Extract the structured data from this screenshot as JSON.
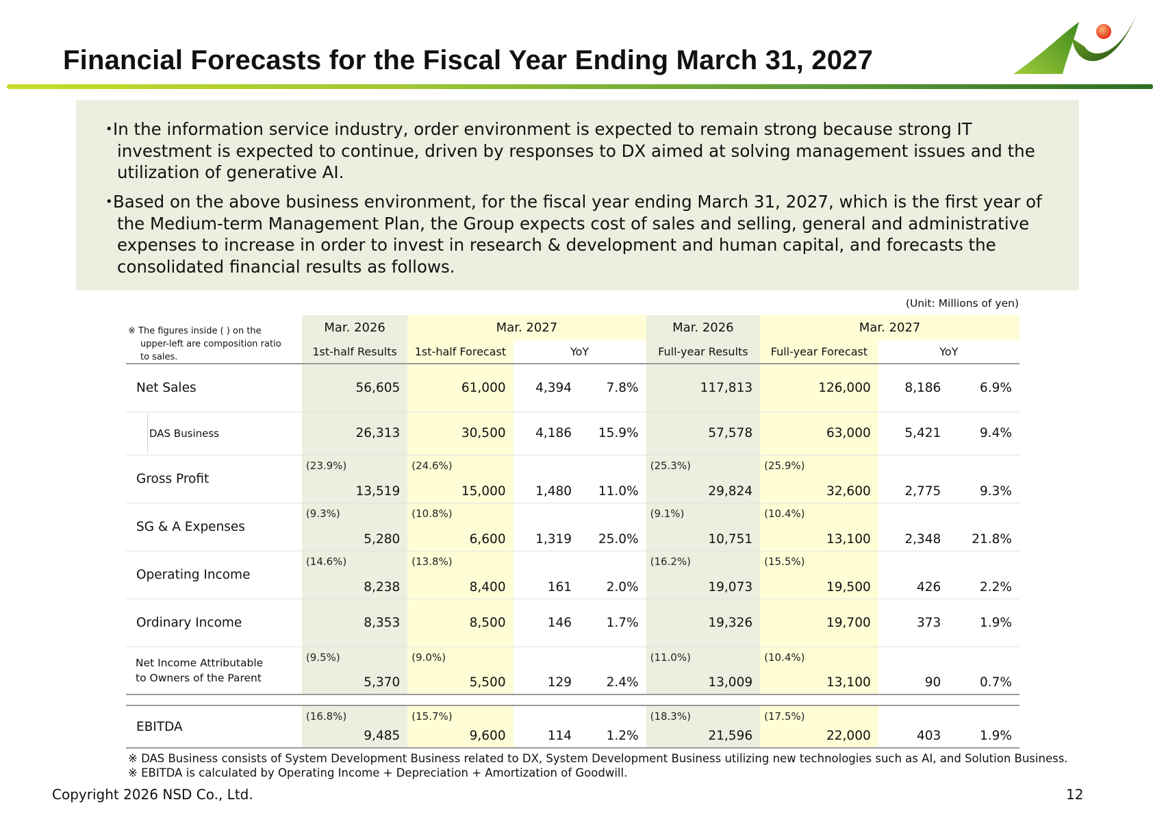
{
  "title": "Financial Forecasts for the Fiscal Year Ending March 31, 2027",
  "summary": {
    "bullet_symbol": "・",
    "bullets": [
      "In the information service industry, order environment is expected to remain strong because strong IT investment is expected to continue, driven by responses to DX aimed at solving management issues and the utilization of generative AI.",
      "Based on the above business environment, for the fiscal year ending March 31, 2027, which is the first year of the Medium-term Management Plan, the Group expects cost of sales and selling, general and administrative expenses to increase in order to invest in research & development and human capital, and forecasts the consolidated financial results as follows."
    ]
  },
  "table": {
    "unit": "(Unit: Millions of yen)",
    "note": "※ The figures inside (  ) on the upper-left are composition ratio to sales.",
    "header_periods": [
      "Mar. 2026",
      "Mar. 2027",
      "Mar. 2026",
      "Mar. 2027"
    ],
    "header_columns": [
      "1st-half Results",
      "1st-half Forecast",
      "YoY",
      "Full-year Results",
      "Full-year Forecast",
      "YoY"
    ],
    "rows": [
      {
        "label": "Net Sales",
        "h1r": "56,605",
        "h1f": "61,000",
        "h1yoy": "4,394",
        "h1pct": "7.8%",
        "fyr": "117,813",
        "fyf": "126,000",
        "fyyoy": "8,186",
        "fypct": "6.9%"
      },
      {
        "label": "DAS Business",
        "h1r": "26,313",
        "h1f": "30,500",
        "h1yoy": "4,186",
        "h1pct": "15.9%",
        "fyr": "57,578",
        "fyf": "63,000",
        "fyyoy": "5,421",
        "fypct": "9.4%"
      },
      {
        "label": "Gross Profit",
        "h1r_ratio": "(23.9%)",
        "h1r": "13,519",
        "h1f_ratio": "(24.6%)",
        "h1f": "15,000",
        "h1yoy": "1,480",
        "h1pct": "11.0%",
        "fyr_ratio": "(25.3%)",
        "fyr": "29,824",
        "fyf_ratio": "(25.9%)",
        "fyf": "32,600",
        "fyyoy": "2,775",
        "fypct": "9.3%"
      },
      {
        "label": "SG & A Expenses",
        "h1r_ratio": "(9.3%)",
        "h1r": "5,280",
        "h1f_ratio": "(10.8%)",
        "h1f": "6,600",
        "h1yoy": "1,319",
        "h1pct": "25.0%",
        "fyr_ratio": "(9.1%)",
        "fyr": "10,751",
        "fyf_ratio": "(10.4%)",
        "fyf": "13,100",
        "fyyoy": "2,348",
        "fypct": "21.8%"
      },
      {
        "label": "Operating Income",
        "h1r_ratio": "(14.6%)",
        "h1r": "8,238",
        "h1f_ratio": "(13.8%)",
        "h1f": "8,400",
        "h1yoy": "161",
        "h1pct": "2.0%",
        "fyr_ratio": "(16.2%)",
        "fyr": "19,073",
        "fyf_ratio": "(15.5%)",
        "fyf": "19,500",
        "fyyoy": "426",
        "fypct": "2.2%"
      },
      {
        "label": "Ordinary Income",
        "h1r": "8,353",
        "h1f": "8,500",
        "h1yoy": "146",
        "h1pct": "1.7%",
        "fyr": "19,326",
        "fyf": "19,700",
        "fyyoy": "373",
        "fypct": "1.9%"
      },
      {
        "label_line1": "Net Income Attributable",
        "label_line2": "to Owners of the Parent",
        "h1r_ratio": "(9.5%)",
        "h1r": "5,370",
        "h1f_ratio": "(9.0%)",
        "h1f": "5,500",
        "h1yoy": "129",
        "h1pct": "2.4%",
        "fyr_ratio": "(11.0%)",
        "fyr": "13,009",
        "fyf_ratio": "(10.4%)",
        "fyf": "13,100",
        "fyyoy": "90",
        "fypct": "0.7%"
      },
      {
        "label": "EBITDA",
        "h1r_ratio": "(16.8%)",
        "h1r": "9,485",
        "h1f_ratio": "(15.7%)",
        "h1f": "9,600",
        "h1yoy": "114",
        "h1pct": "1.2%",
        "fyr_ratio": "(18.3%)",
        "fyr": "21,596",
        "fyf_ratio": "(17.5%)",
        "fyf": "22,000",
        "fyyoy": "403",
        "fypct": "1.9%"
      }
    ]
  },
  "footnotes": [
    "※ DAS Business consists of System Development Business related to DX, System Development Business utilizing new technologies such as AI, and Solution Business.",
    "※ EBITDA is calculated by Operating Income + Depreciation + Amortization of Goodwill."
  ],
  "footer": {
    "copyright": "Copyright 2026 NSD Co., Ltd.",
    "page": "12"
  },
  "colors": {
    "summary_bg": "#ebefdf",
    "results_col_bg": "#ebefdf",
    "forecast_col_bg": "#fefdd6",
    "logo_green": "#5ea32a",
    "logo_orange": "#e8401c"
  }
}
